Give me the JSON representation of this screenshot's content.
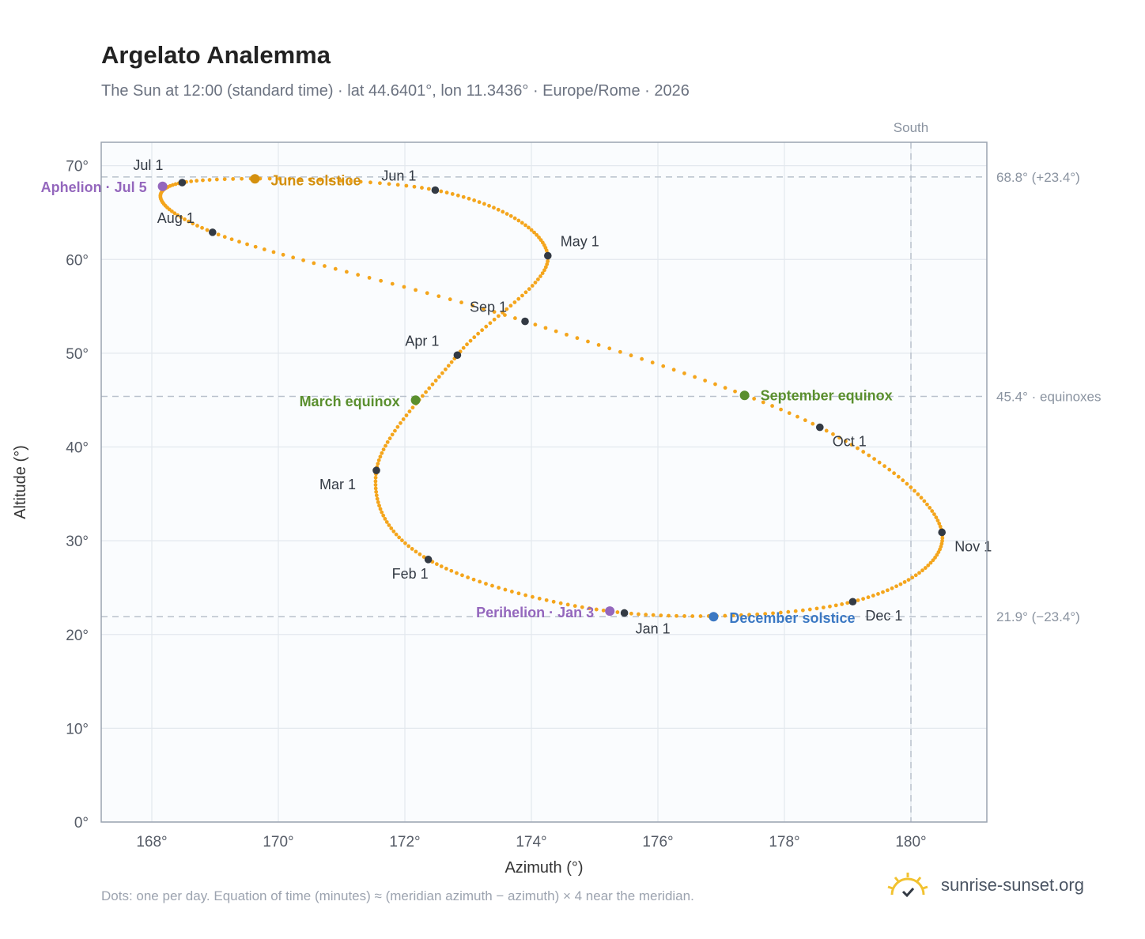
{
  "header": {
    "title": "Argelato Analemma",
    "subtitle": "The Sun at 12:00 (standard time) · lat 44.6401°, lon 11.3436° · Europe/Rome · 2026"
  },
  "footer": {
    "note": "Dots: one per day. Equation of time (minutes) ≈ (meridian azimuth − azimuth) × 4 near the meridian.",
    "brand": "sunrise-sunset.org"
  },
  "chart_data": {
    "type": "scatter",
    "xlabel": "Azimuth (°)",
    "ylabel": "Altitude (°)",
    "xlim": [
      167.2,
      181.2
    ],
    "ylim": [
      0,
      72.5
    ],
    "x_ticks": [
      168,
      170,
      172,
      174,
      176,
      178,
      180
    ],
    "y_ticks": [
      0,
      10,
      20,
      30,
      40,
      50,
      60,
      70
    ],
    "x_tick_labels": [
      "168°",
      "170°",
      "172°",
      "174°",
      "176°",
      "178°",
      "180°"
    ],
    "y_tick_labels": [
      "0°",
      "10°",
      "20°",
      "30°",
      "40°",
      "50°",
      "60°",
      "70°"
    ],
    "grid": true,
    "colors": {
      "curve": "#f4a51c",
      "month_marker": "#333a44",
      "solstice_june": "#d4900f",
      "solstice_december": "#3b78c3",
      "equinox": "#5a8f2e",
      "apsis": "#9467bd",
      "reference_line": "#b9c1cc",
      "plot_bg": "#fafcfe",
      "plot_border": "#9aa3b0"
    },
    "south_line": {
      "x": 180,
      "label": "South"
    },
    "reference_lines": [
      {
        "y": 68.8,
        "label": "68.8° (+23.4°)"
      },
      {
        "y": 45.4,
        "label": "45.4° · equinoxes"
      },
      {
        "y": 21.9,
        "label": "21.9° (−23.4°)"
      }
    ],
    "month_markers": [
      {
        "label": "Jan 1",
        "x": 175.47,
        "y": 22.3
      },
      {
        "label": "Feb 1",
        "x": 172.37,
        "y": 28.0
      },
      {
        "label": "Mar 1",
        "x": 171.55,
        "y": 37.5
      },
      {
        "label": "Apr 1",
        "x": 172.83,
        "y": 49.8
      },
      {
        "label": "May 1",
        "x": 174.26,
        "y": 60.4
      },
      {
        "label": "Jun 1",
        "x": 172.48,
        "y": 67.4
      },
      {
        "label": "Jul 1",
        "x": 168.48,
        "y": 68.2
      },
      {
        "label": "Aug 1",
        "x": 168.96,
        "y": 62.9
      },
      {
        "label": "Sep 1",
        "x": 173.9,
        "y": 53.4
      },
      {
        "label": "Oct 1",
        "x": 178.56,
        "y": 42.1
      },
      {
        "label": "Nov 1",
        "x": 180.49,
        "y": 30.9
      },
      {
        "label": "Dec 1",
        "x": 179.08,
        "y": 23.5
      }
    ],
    "events": [
      {
        "label": "June solstice",
        "x": 169.63,
        "y": 68.6,
        "kind": "solstice_june"
      },
      {
        "label": "December solstice",
        "x": 176.88,
        "y": 21.9,
        "kind": "solstice_december"
      },
      {
        "label": "March equinox",
        "x": 172.17,
        "y": 45.0,
        "kind": "equinox"
      },
      {
        "label": "September equinox",
        "x": 177.37,
        "y": 45.5,
        "kind": "equinox"
      },
      {
        "label": "Aphelion · Jul 5",
        "x": 168.17,
        "y": 67.8,
        "kind": "apsis"
      },
      {
        "label": "Perihelion · Jan 3",
        "x": 175.24,
        "y": 22.5,
        "kind": "apsis"
      }
    ]
  }
}
